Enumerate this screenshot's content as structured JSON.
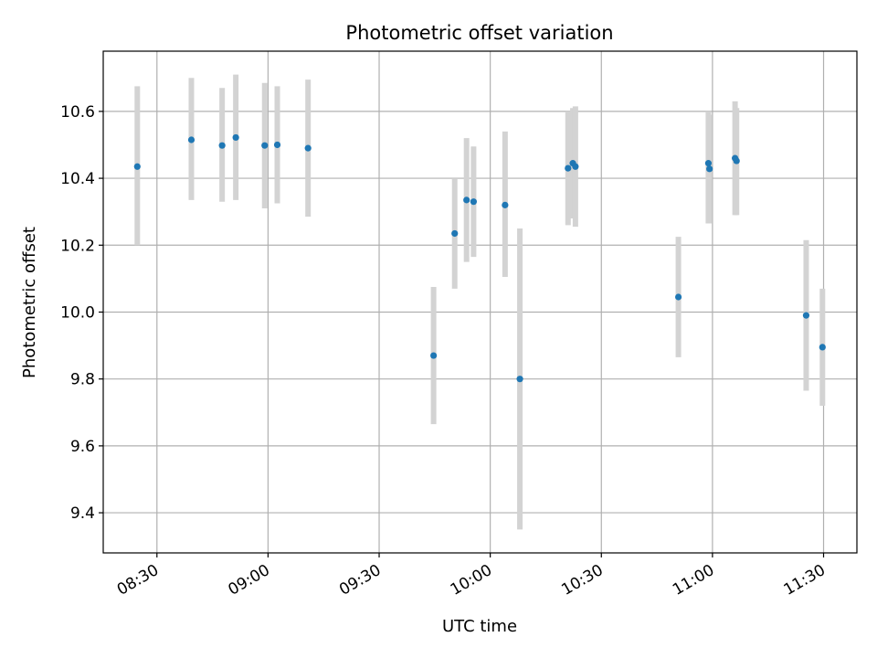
{
  "chart_data": {
    "type": "scatter",
    "title": "Photometric offset variation",
    "xlabel": "UTC time",
    "ylabel": "Photometric offset",
    "grid": true,
    "x_unit": "minutes since 00:00 UTC",
    "xlim": [
      495.5,
      699
    ],
    "ylim": [
      9.28,
      10.78
    ],
    "x_ticks": [
      {
        "value": 510,
        "label": "08:30"
      },
      {
        "value": 540,
        "label": "09:00"
      },
      {
        "value": 570,
        "label": "09:30"
      },
      {
        "value": 600,
        "label": "10:00"
      },
      {
        "value": 630,
        "label": "10:30"
      },
      {
        "value": 660,
        "label": "11:00"
      },
      {
        "value": 690,
        "label": "11:30"
      }
    ],
    "y_ticks": [
      {
        "value": 9.4,
        "label": "9.4"
      },
      {
        "value": 9.6,
        "label": "9.6"
      },
      {
        "value": 9.8,
        "label": "9.8"
      },
      {
        "value": 10.0,
        "label": "10.0"
      },
      {
        "value": 10.2,
        "label": "10.2"
      },
      {
        "value": 10.4,
        "label": "10.4"
      },
      {
        "value": 10.6,
        "label": "10.6"
      }
    ],
    "colors": {
      "point": "#1f77b4",
      "errorbar": "#d3d3d3",
      "grid": "#b0b0b0",
      "axes": "#000000"
    },
    "series": [
      {
        "name": "offset",
        "points": [
          {
            "x": 504.7,
            "y": 10.435,
            "ylow": 10.2,
            "yhigh": 10.675
          },
          {
            "x": 519.3,
            "y": 10.515,
            "ylow": 10.335,
            "yhigh": 10.7
          },
          {
            "x": 527.6,
            "y": 10.498,
            "ylow": 10.33,
            "yhigh": 10.67
          },
          {
            "x": 531.3,
            "y": 10.522,
            "ylow": 10.335,
            "yhigh": 10.71
          },
          {
            "x": 539.1,
            "y": 10.498,
            "ylow": 10.31,
            "yhigh": 10.685
          },
          {
            "x": 542.5,
            "y": 10.5,
            "ylow": 10.325,
            "yhigh": 10.675
          },
          {
            "x": 550.8,
            "y": 10.49,
            "ylow": 10.285,
            "yhigh": 10.695
          },
          {
            "x": 584.7,
            "y": 9.87,
            "ylow": 9.665,
            "yhigh": 10.075
          },
          {
            "x": 590.4,
            "y": 10.235,
            "ylow": 10.07,
            "yhigh": 10.4
          },
          {
            "x": 593.6,
            "y": 10.335,
            "ylow": 10.15,
            "yhigh": 10.52
          },
          {
            "x": 595.5,
            "y": 10.33,
            "ylow": 10.165,
            "yhigh": 10.495
          },
          {
            "x": 604.0,
            "y": 10.32,
            "ylow": 10.105,
            "yhigh": 10.54
          },
          {
            "x": 608.0,
            "y": 9.8,
            "ylow": 9.35,
            "yhigh": 10.25
          },
          {
            "x": 621.0,
            "y": 10.43,
            "ylow": 10.26,
            "yhigh": 10.6
          },
          {
            "x": 622.3,
            "y": 10.445,
            "ylow": 10.28,
            "yhigh": 10.61
          },
          {
            "x": 623.0,
            "y": 10.435,
            "ylow": 10.255,
            "yhigh": 10.615
          },
          {
            "x": 650.8,
            "y": 10.045,
            "ylow": 9.865,
            "yhigh": 10.225
          },
          {
            "x": 658.9,
            "y": 10.445,
            "ylow": 10.265,
            "yhigh": 10.6
          },
          {
            "x": 659.2,
            "y": 10.428,
            "ylow": 10.265,
            "yhigh": 10.59
          },
          {
            "x": 666.1,
            "y": 10.46,
            "ylow": 10.29,
            "yhigh": 10.63
          },
          {
            "x": 666.5,
            "y": 10.452,
            "ylow": 10.29,
            "yhigh": 10.61
          },
          {
            "x": 685.3,
            "y": 9.99,
            "ylow": 9.765,
            "yhigh": 10.215
          },
          {
            "x": 689.7,
            "y": 9.895,
            "ylow": 9.72,
            "yhigh": 10.07
          }
        ]
      }
    ]
  }
}
